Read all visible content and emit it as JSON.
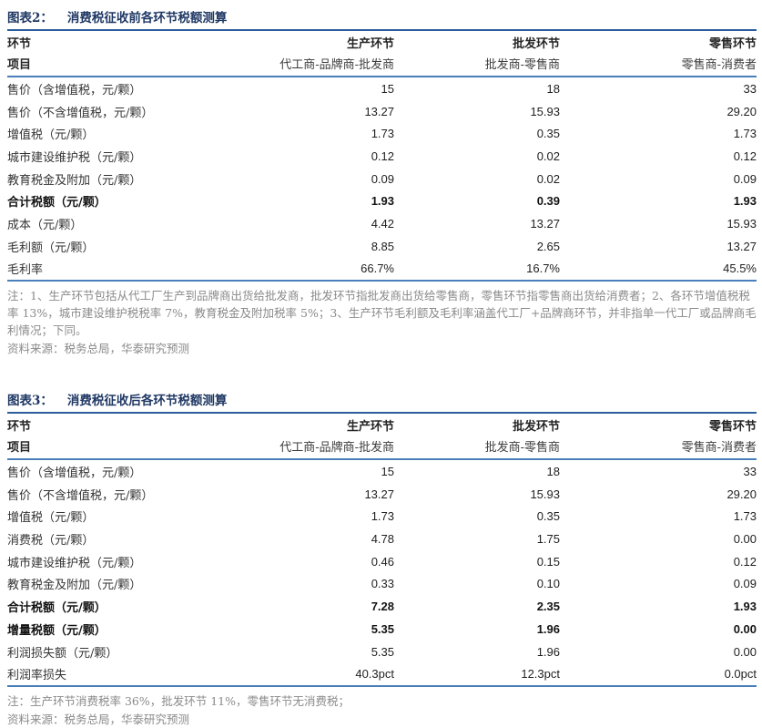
{
  "colors": {
    "title_navy": "#1f3864",
    "rule_blue": "#4a7ebb",
    "body_text": "#1f1f1f",
    "note_gray": "#8a8a8a",
    "background": "#ffffff"
  },
  "tables": [
    {
      "title_label": "图表2：",
      "title_text": "消费税征收前各环节税额测算",
      "header": {
        "row1_label": "环节",
        "row2_label": "项目",
        "columns": [
          {
            "stage": "生产环节",
            "parties": "代工商-品牌商-批发商"
          },
          {
            "stage": "批发环节",
            "parties": "批发商-零售商"
          },
          {
            "stage": "零售环节",
            "parties": "零售商-消费者"
          }
        ]
      },
      "rows": [
        {
          "label": "售价（含增值税，元/颗）",
          "values": [
            "15",
            "18",
            "33"
          ],
          "bold": false
        },
        {
          "label": "售价（不含增值税，元/颗）",
          "values": [
            "13.27",
            "15.93",
            "29.20"
          ],
          "bold": false
        },
        {
          "label": "增值税（元/颗）",
          "values": [
            "1.73",
            "0.35",
            "1.73"
          ],
          "bold": false
        },
        {
          "label": "城市建设维护税（元/颗）",
          "values": [
            "0.12",
            "0.02",
            "0.12"
          ],
          "bold": false
        },
        {
          "label": "教育税金及附加（元/颗）",
          "values": [
            "0.09",
            "0.02",
            "0.09"
          ],
          "bold": false
        },
        {
          "label": "合计税额（元/颗）",
          "values": [
            "1.93",
            "0.39",
            "1.93"
          ],
          "bold": true
        },
        {
          "label": "成本（元/颗）",
          "values": [
            "4.42",
            "13.27",
            "15.93"
          ],
          "bold": false
        },
        {
          "label": "毛利额（元/颗）",
          "values": [
            "8.85",
            "2.65",
            "13.27"
          ],
          "bold": false
        },
        {
          "label": "毛利率",
          "values": [
            "66.7%",
            "16.7%",
            "45.5%"
          ],
          "bold": false
        }
      ],
      "note": "注：1、生产环节包括从代工厂生产到品牌商出货给批发商，批发环节指批发商出货给零售商，零售环节指零售商出货给消费者；2、各环节增值税税率 13%，城市建设维护税税率 7%，教育税金及附加税率 5%；3、生产环节毛利额及毛利率涵盖代工厂+品牌商环节，并非指单一代工厂或品牌商毛利情况；下同。",
      "source": "资料来源：税务总局，华泰研究预测"
    },
    {
      "title_label": "图表3：",
      "title_text": "消费税征收后各环节税额测算",
      "header": {
        "row1_label": "环节",
        "row2_label": "项目",
        "columns": [
          {
            "stage": "生产环节",
            "parties": "代工商-品牌商-批发商"
          },
          {
            "stage": "批发环节",
            "parties": "批发商-零售商"
          },
          {
            "stage": "零售环节",
            "parties": "零售商-消费者"
          }
        ]
      },
      "rows": [
        {
          "label": "售价（含增值税，元/颗）",
          "values": [
            "15",
            "18",
            "33"
          ],
          "bold": false
        },
        {
          "label": "售价（不含增值税，元/颗）",
          "values": [
            "13.27",
            "15.93",
            "29.20"
          ],
          "bold": false
        },
        {
          "label": "增值税（元/颗）",
          "values": [
            "1.73",
            "0.35",
            "1.73"
          ],
          "bold": false
        },
        {
          "label": "消费税（元/颗）",
          "values": [
            "4.78",
            "1.75",
            "0.00"
          ],
          "bold": false
        },
        {
          "label": "城市建设维护税（元/颗）",
          "values": [
            "0.46",
            "0.15",
            "0.12"
          ],
          "bold": false
        },
        {
          "label": "教育税金及附加（元/颗）",
          "values": [
            "0.33",
            "0.10",
            "0.09"
          ],
          "bold": false
        },
        {
          "label": "合计税额（元/颗）",
          "values": [
            "7.28",
            "2.35",
            "1.93"
          ],
          "bold": true
        },
        {
          "label": "增量税额（元/颗）",
          "values": [
            "5.35",
            "1.96",
            "0.00"
          ],
          "bold": true
        },
        {
          "label": "利润损失额（元/颗）",
          "values": [
            "5.35",
            "1.96",
            "0.00"
          ],
          "bold": false
        },
        {
          "label": "利润率损失",
          "values": [
            "40.3pct",
            "12.3pct",
            "0.0pct"
          ],
          "bold": false
        }
      ],
      "note": "注：生产环节消费税率 36%，批发环节 11%，零售环节无消费税；",
      "source": "资料来源：税务总局，华泰研究预测"
    }
  ]
}
